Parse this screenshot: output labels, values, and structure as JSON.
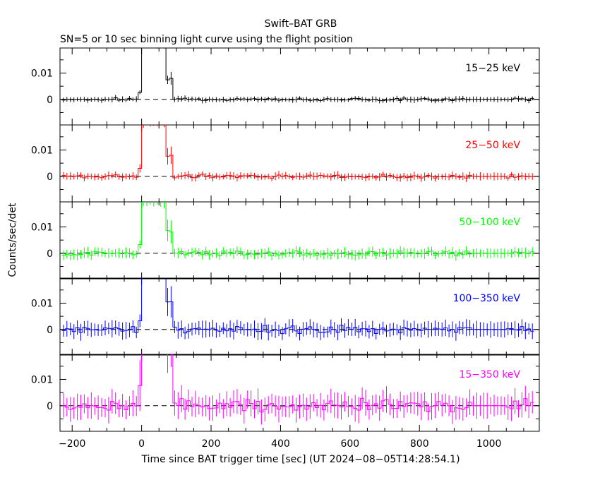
{
  "chart_data": {
    "type": "line",
    "title": "Swift–BAT GRB",
    "subtitle": "SN=5 or 10 sec binning light curve using the flight position",
    "xlabel": "Time since BAT trigger time [sec] (UT 2024−08−05T14:28:54.1)",
    "ylabel": "Counts/sec/det",
    "xlim": [
      -235,
      1145
    ],
    "ylim": [
      -0.0097,
      0.0195
    ],
    "x_ticks": [
      -200,
      0,
      200,
      400,
      600,
      800,
      1000
    ],
    "x_tick_labels": [
      "−200",
      "0",
      "200",
      "400",
      "600",
      "800",
      "1000"
    ],
    "y_ticks": [
      0,
      0.01
    ],
    "y_tick_labels": [
      "0",
      "0.01"
    ],
    "zero_line": "dashed",
    "bin_width_sec": 10,
    "series": [
      {
        "name": "15−25 keV",
        "color": "#000000"
      },
      {
        "name": "25−50 keV",
        "color": "#ff0000"
      },
      {
        "name": "50−100 keV",
        "color": "#00ff00"
      },
      {
        "name": "100−350 keV",
        "color": "#0000ff"
      },
      {
        "name": "15−350 keV",
        "color": "#ff00ff"
      }
    ]
  }
}
